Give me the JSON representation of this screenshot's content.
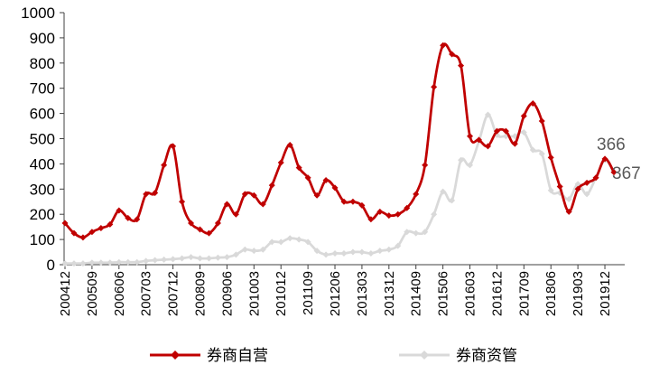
{
  "chart_data": {
    "type": "line",
    "ylim": [
      0,
      1000
    ],
    "y_ticks": [
      "0",
      "100",
      "200",
      "300",
      "400",
      "500",
      "600",
      "700",
      "800",
      "900",
      "1000"
    ],
    "x_tick_labels": [
      "200412",
      "200509",
      "200606",
      "200703",
      "200712",
      "200809",
      "200906",
      "201003",
      "201012",
      "201109",
      "201206",
      "201303",
      "201312",
      "201409",
      "201506",
      "201603",
      "201612",
      "201709",
      "201806",
      "201903",
      "201912"
    ],
    "legend_position": "bottom",
    "grid": false,
    "colors": {
      "series1": "#c00000",
      "series2": "#d9d9d9",
      "axis": "#404040",
      "label": "#595959"
    },
    "series": [
      {
        "name": "券商自营",
        "values": [
          165,
          125,
          108,
          130,
          145,
          160,
          215,
          185,
          180,
          280,
          285,
          395,
          470,
          250,
          165,
          140,
          125,
          165,
          240,
          200,
          280,
          275,
          240,
          315,
          405,
          475,
          385,
          345,
          275,
          335,
          305,
          250,
          250,
          235,
          180,
          210,
          195,
          200,
          225,
          280,
          395,
          705,
          870,
          835,
          790,
          510,
          495,
          470,
          530,
          530,
          480,
          590,
          640,
          570,
          425,
          310,
          210,
          300,
          325,
          345,
          420,
          367
        ]
      },
      {
        "name": "券商资管",
        "values": [
          5,
          5,
          5,
          8,
          8,
          8,
          10,
          10,
          10,
          15,
          18,
          20,
          22,
          25,
          30,
          25,
          25,
          28,
          30,
          40,
          60,
          55,
          60,
          90,
          90,
          105,
          100,
          90,
          55,
          40,
          45,
          45,
          50,
          50,
          45,
          55,
          60,
          75,
          130,
          125,
          130,
          200,
          290,
          255,
          415,
          395,
          490,
          595,
          515,
          510,
          510,
          525,
          455,
          440,
          295,
          285,
          260,
          320,
          280,
          345,
          415,
          366
        ]
      }
    ],
    "end_labels": [
      "366",
      "367"
    ]
  }
}
